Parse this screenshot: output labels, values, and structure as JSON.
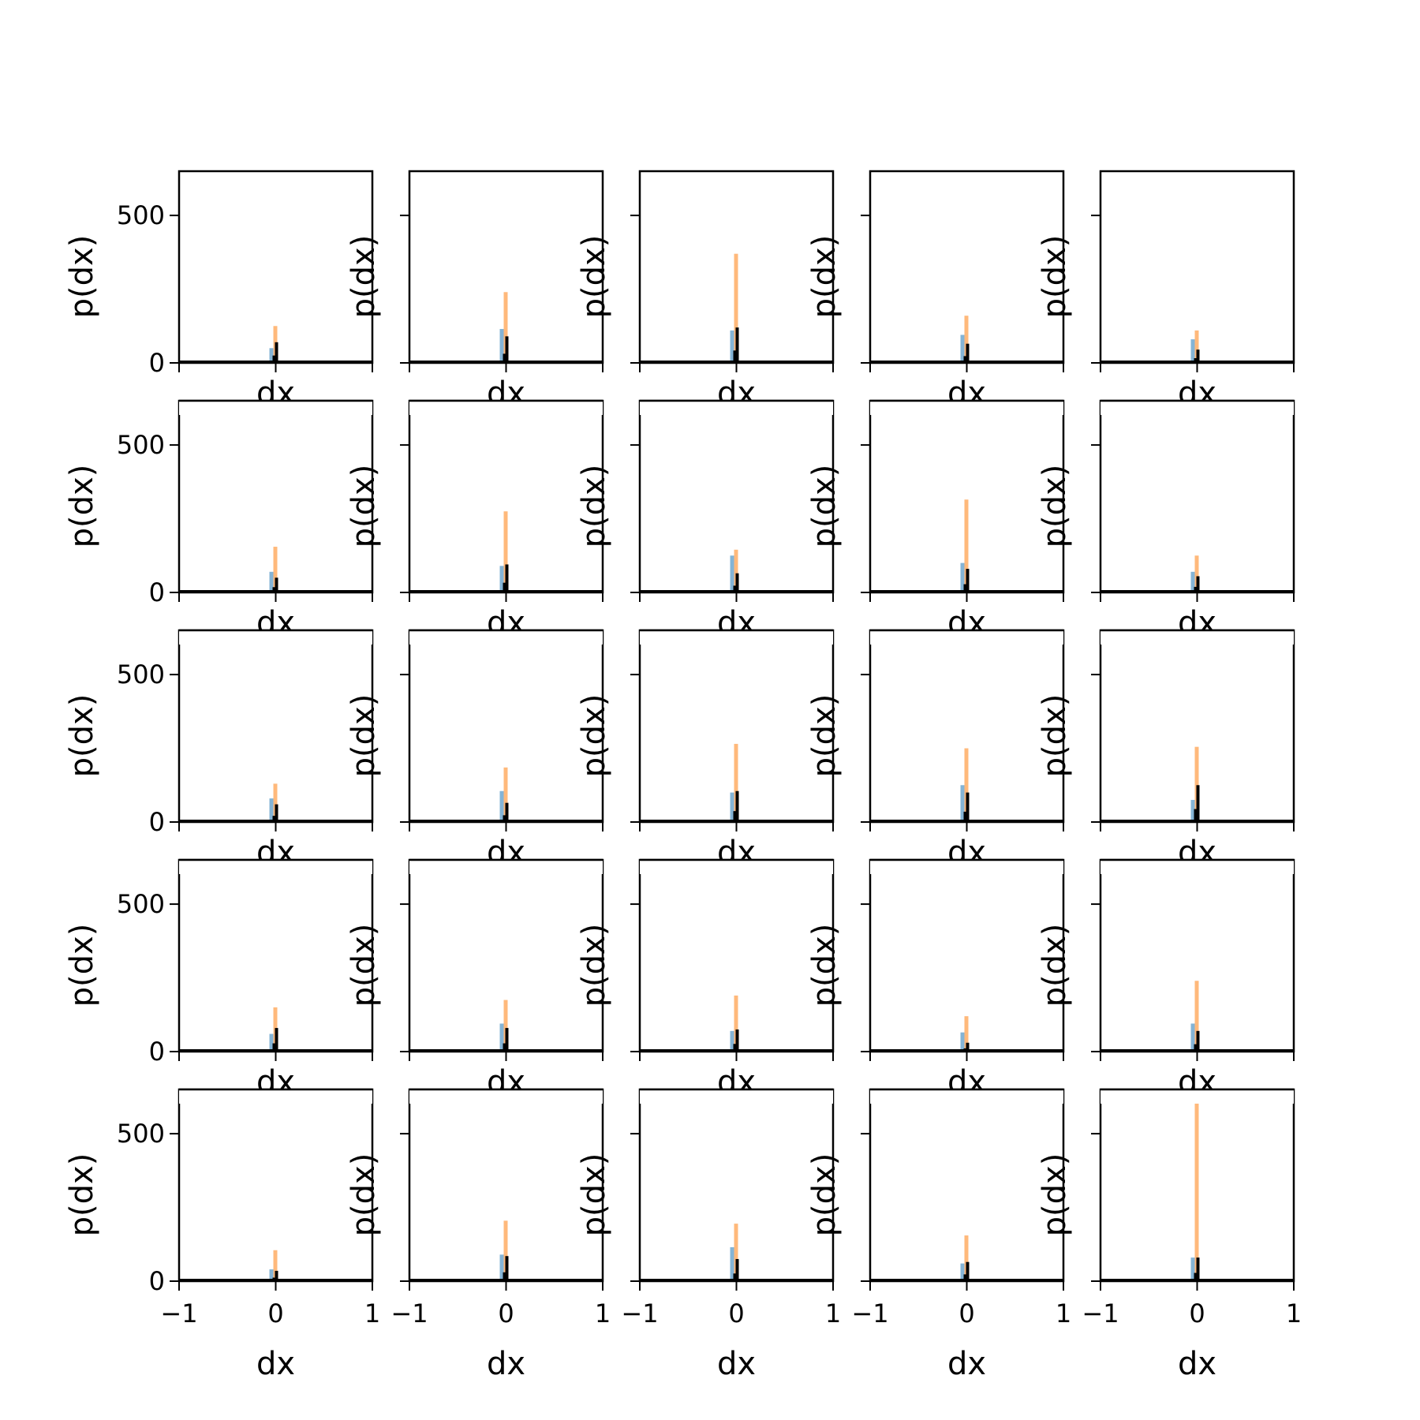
{
  "chart_data": {
    "type": "histogram-grid",
    "rows": 5,
    "cols": 5,
    "xlabel": "dx",
    "ylabel": "p(dx)",
    "xlim": [
      -1,
      1
    ],
    "ylim": [
      0,
      650
    ],
    "xticks": [
      -1,
      0,
      1
    ],
    "xtick_labels": [
      "−1",
      "0",
      "1"
    ],
    "yticks": [
      0,
      500
    ],
    "ytick_labels": [
      "0",
      "500"
    ],
    "colors": {
      "orange": "#ff7f0e",
      "blue": "#1f77b4",
      "black": "#000000"
    },
    "panels": [
      {
        "orange": 125,
        "blue": 50,
        "black": 70
      },
      {
        "orange": 240,
        "blue": 115,
        "black": 90
      },
      {
        "orange": 370,
        "blue": 110,
        "black": 120
      },
      {
        "orange": 160,
        "blue": 95,
        "black": 65
      },
      {
        "orange": 110,
        "blue": 80,
        "black": 45
      },
      {
        "orange": 155,
        "blue": 70,
        "black": 50
      },
      {
        "orange": 275,
        "blue": 90,
        "black": 95
      },
      {
        "orange": 145,
        "blue": 125,
        "black": 65
      },
      {
        "orange": 315,
        "blue": 100,
        "black": 80
      },
      {
        "orange": 125,
        "blue": 70,
        "black": 55
      },
      {
        "orange": 130,
        "blue": 80,
        "black": 60
      },
      {
        "orange": 185,
        "blue": 105,
        "black": 65
      },
      {
        "orange": 265,
        "blue": 100,
        "black": 105
      },
      {
        "orange": 250,
        "blue": 125,
        "black": 100
      },
      {
        "orange": 255,
        "blue": 75,
        "black": 125
      },
      {
        "orange": 150,
        "blue": 60,
        "black": 80
      },
      {
        "orange": 175,
        "blue": 95,
        "black": 80
      },
      {
        "orange": 190,
        "blue": 70,
        "black": 75
      },
      {
        "orange": 120,
        "blue": 65,
        "black": 30
      },
      {
        "orange": 240,
        "blue": 95,
        "black": 70
      },
      {
        "orange": 105,
        "blue": 40,
        "black": 35
      },
      {
        "orange": 205,
        "blue": 90,
        "black": 85
      },
      {
        "orange": 195,
        "blue": 115,
        "black": 75
      },
      {
        "orange": 155,
        "blue": 60,
        "black": 65
      },
      {
        "orange": 615,
        "blue": 80,
        "black": 80
      }
    ]
  }
}
